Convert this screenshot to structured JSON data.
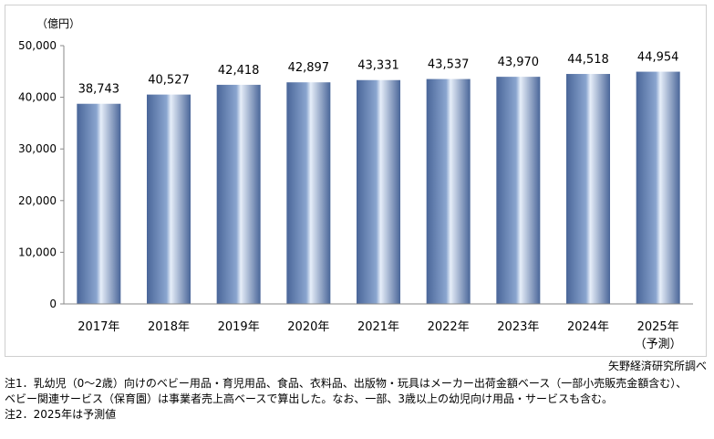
{
  "chart_data": {
    "type": "bar",
    "ylabel": "（億円）",
    "categories": [
      "2017年",
      "2018年",
      "2019年",
      "2020年",
      "2021年",
      "2022年",
      "2023年",
      "2024年",
      "2025年"
    ],
    "category_sublabels": [
      "",
      "",
      "",
      "",
      "",
      "",
      "",
      "",
      "（予測）"
    ],
    "values": [
      38743,
      40527,
      42418,
      42897,
      43331,
      43537,
      43970,
      44518,
      44954
    ],
    "value_labels": [
      "38,743",
      "40,527",
      "42,418",
      "42,897",
      "43,331",
      "43,537",
      "43,970",
      "44,518",
      "44,954"
    ],
    "ylim": [
      0,
      50000
    ],
    "yticks": [
      0,
      10000,
      20000,
      30000,
      40000,
      50000
    ],
    "ytick_labels": [
      "0",
      "10,000",
      "20,000",
      "30,000",
      "40,000",
      "50,000"
    ],
    "grid": false,
    "bar_colors": {
      "dark": "#4a6699",
      "mid": "#8aa5cf",
      "light": "#e6eef9"
    }
  },
  "source": "矢野経済研究所調べ",
  "notes": [
    "注1．乳幼児（0～2歳）向けのベビー用品・育児用品、食品、衣料品、出版物・玩具はメーカー出荷金額ベース（一部小売販売金額含む）、",
    "ベビー関連サービス（保育園）は事業者売上高ベースで算出した。なお、一部、3歳以上の幼児向け用品・サービスも含む。",
    "注2．2025年は予測値"
  ]
}
